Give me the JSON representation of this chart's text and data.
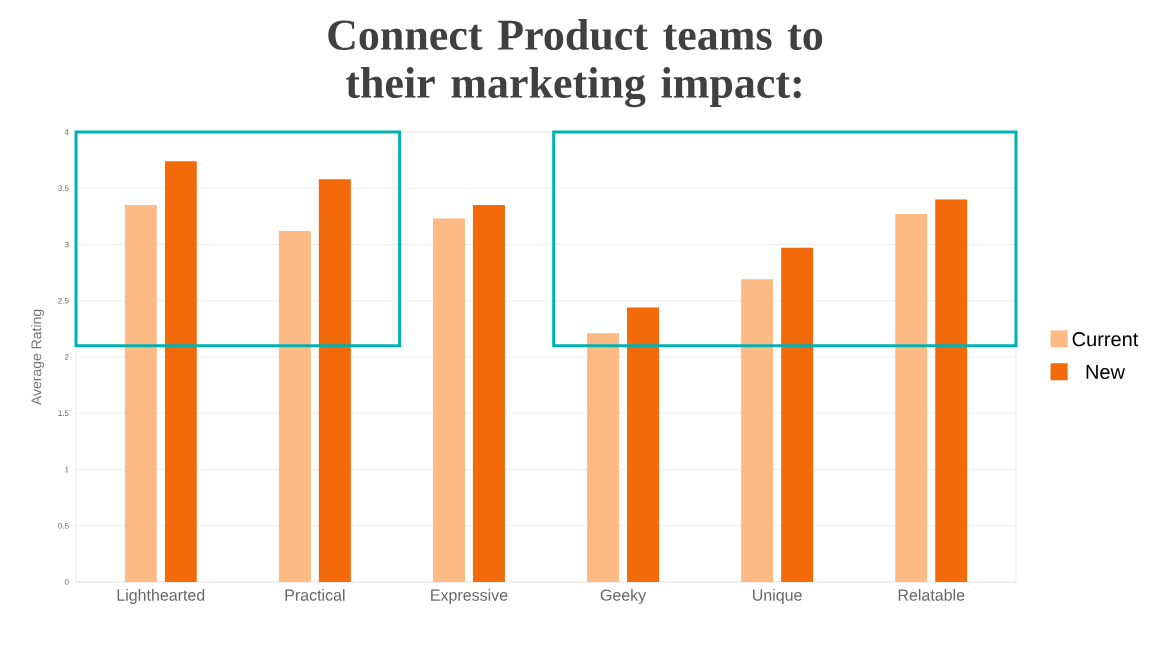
{
  "chart_data": {
    "type": "bar",
    "title": "Connect Product teams to their marketing impact:",
    "ylabel": "Average Rating",
    "categories": [
      "Lighthearted",
      "Practical",
      "Expressive",
      "Geeky",
      "Unique",
      "Relatable"
    ],
    "series": [
      {
        "name": "Current",
        "color": "#fdba84",
        "values": [
          3.35,
          3.12,
          3.23,
          2.21,
          2.69,
          3.27
        ]
      },
      {
        "name": "New",
        "color": "#f26a0a",
        "values": [
          3.74,
          3.58,
          3.35,
          2.44,
          2.97,
          3.4
        ]
      }
    ],
    "ylim": [
      0,
      4
    ],
    "yticks": [
      0,
      0.5,
      1,
      1.5,
      2,
      2.5,
      3,
      3.5,
      4
    ],
    "grid": "y",
    "legend": "right"
  }
}
